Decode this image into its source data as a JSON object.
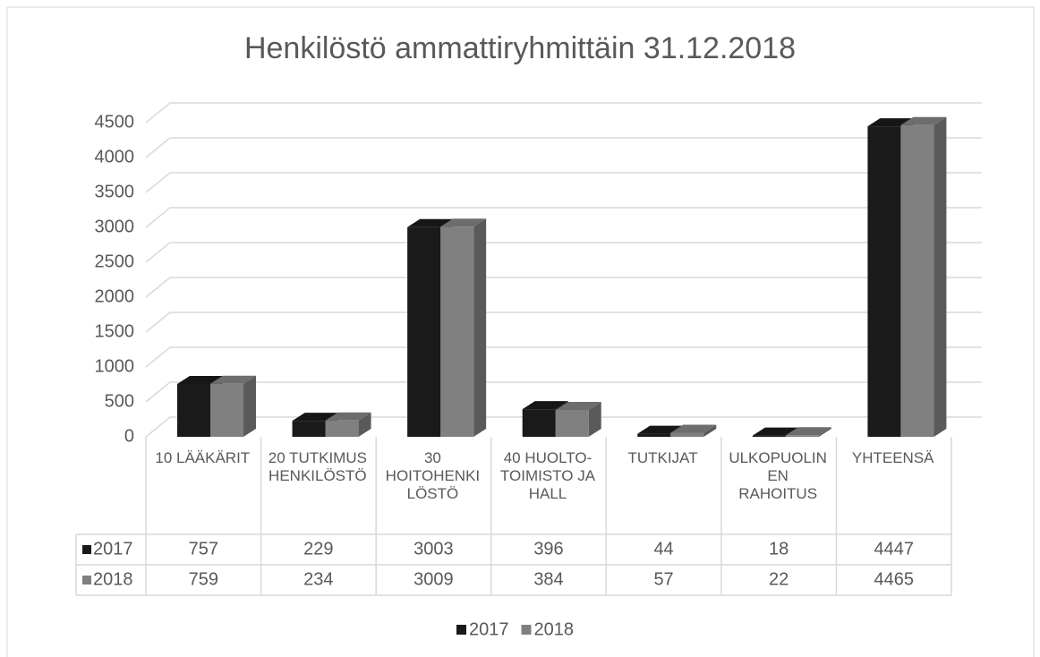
{
  "chart_data": {
    "type": "bar3d",
    "title": "Henkilöstö ammattiryhmittäin 31.12.2018",
    "categories": [
      "10 LÄÄKÄRIT",
      "20 TUTKIMUS HENKILÖSTÖ",
      "30 HOITOHENKILÖSTÖ",
      "40 HUOLTO-TOIMISTO JA HALL",
      "TUTKIJAT",
      "ULKOPUOLINEN RAHOITUS",
      "YHTEENSÄ"
    ],
    "series": [
      {
        "name": "2017",
        "color": "#1a1a1a",
        "values": [
          757,
          229,
          3003,
          396,
          44,
          18,
          4447
        ]
      },
      {
        "name": "2018",
        "color": "#808080",
        "values": [
          759,
          234,
          3009,
          384,
          57,
          22,
          4465
        ]
      }
    ],
    "ylim": [
      0,
      4500
    ],
    "yticks": [
      0,
      500,
      1000,
      1500,
      2000,
      2500,
      3000,
      3500,
      4000,
      4500
    ],
    "grid": true,
    "legend": "bottom",
    "data_table": true
  }
}
